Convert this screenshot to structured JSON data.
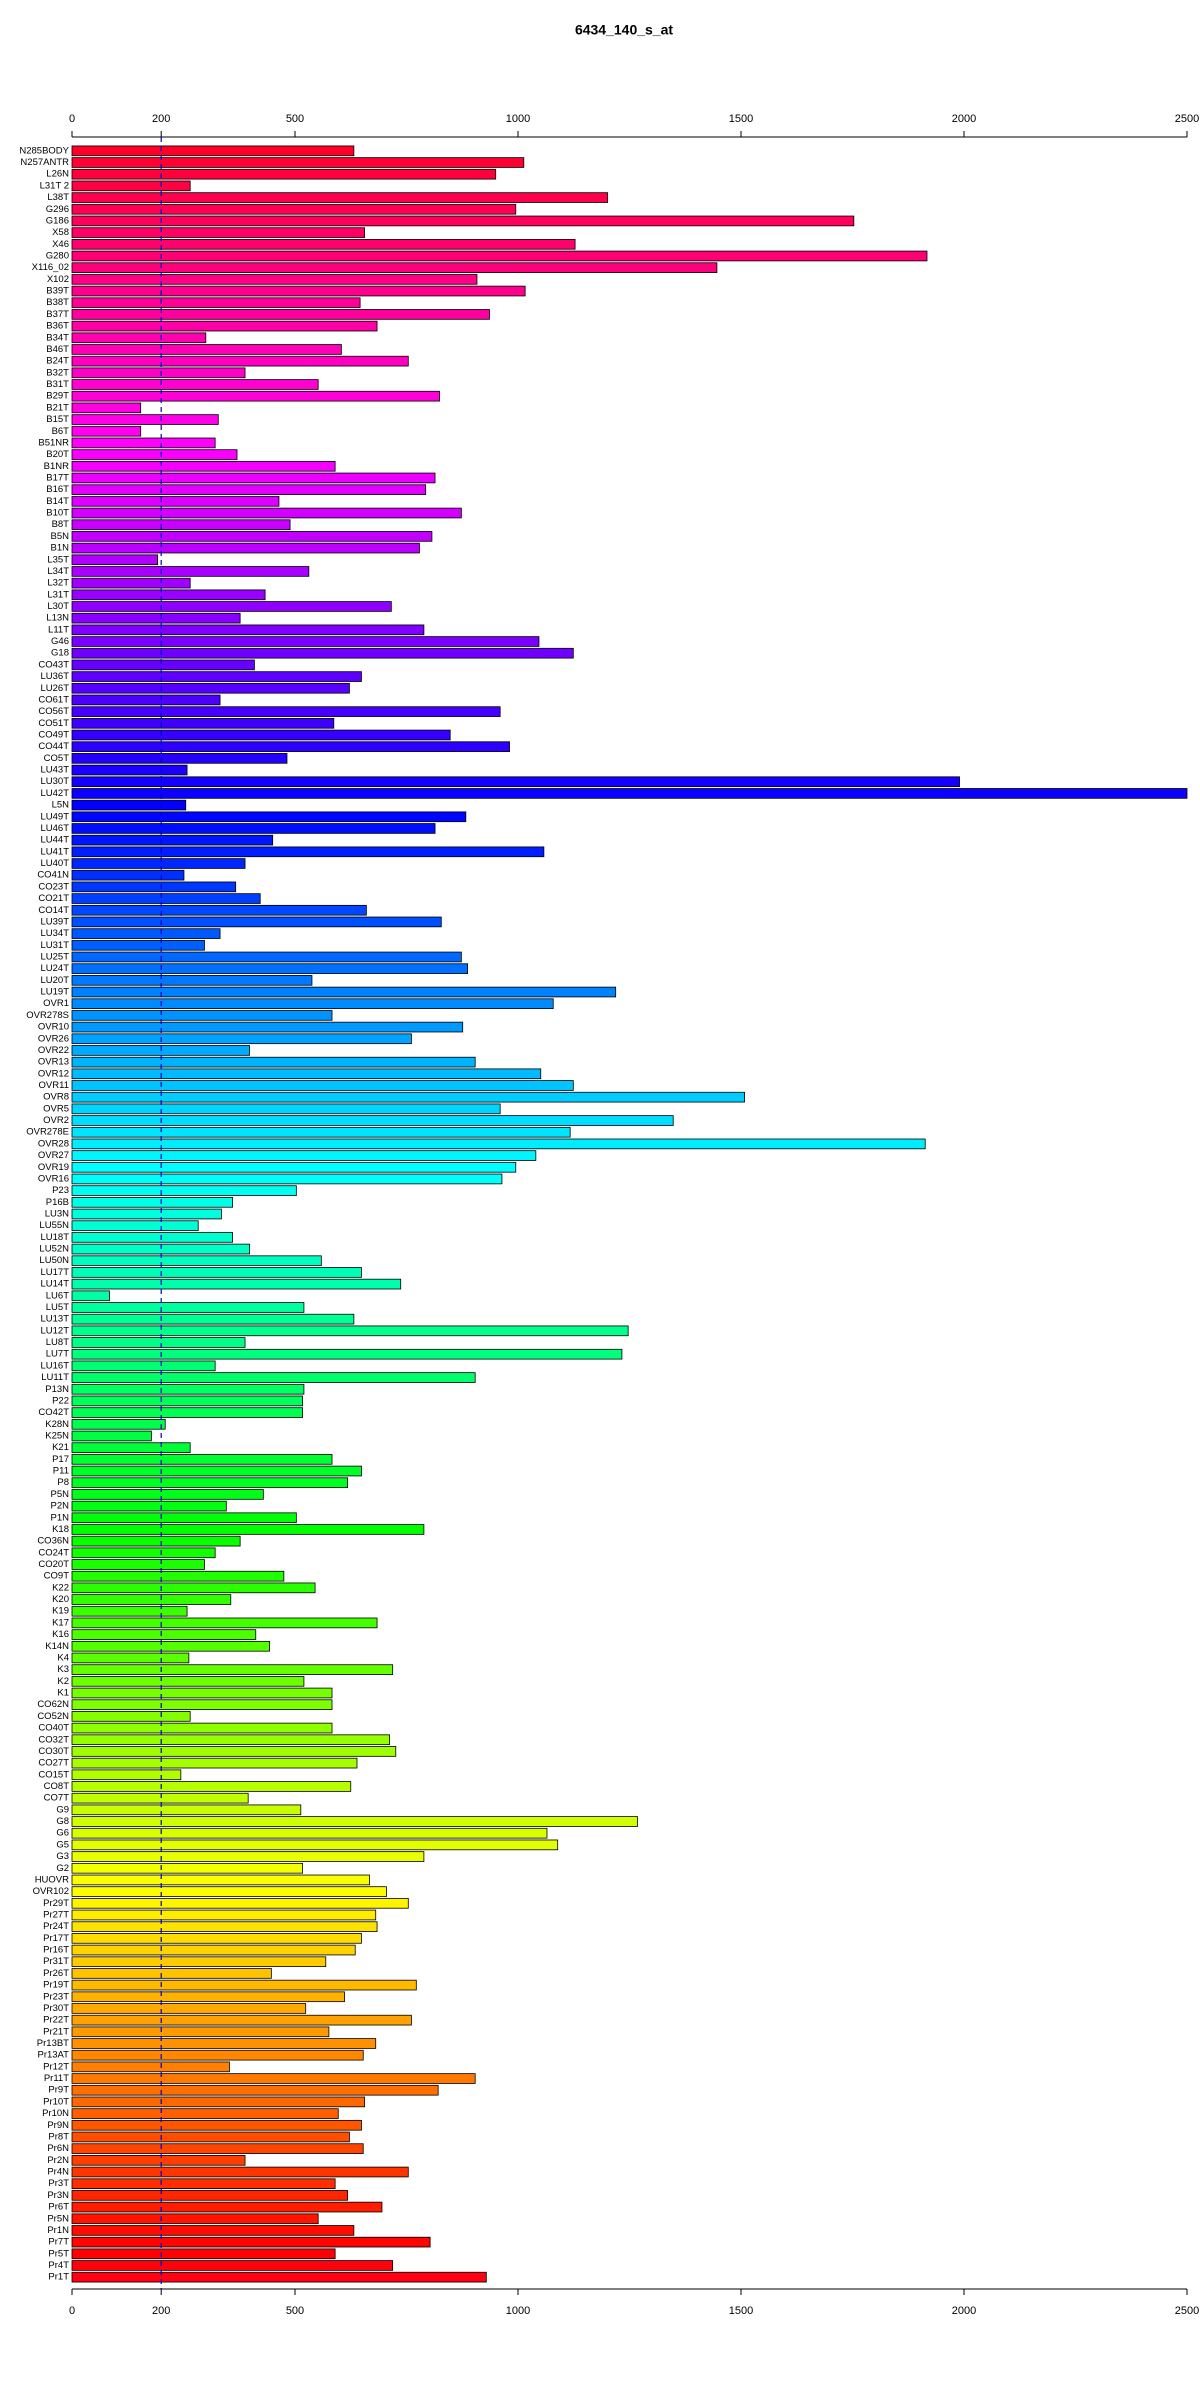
{
  "chart_data": {
    "type": "barh",
    "title": "6434_140_s_at",
    "categories": [
      "N285BODY",
      "N257ANTR",
      "L26N",
      "L31T 2",
      "L38T",
      "G296",
      "G186",
      "X58",
      "X46",
      "G280",
      "X116_02",
      "X102",
      "B39T",
      "B38T",
      "B37T",
      "B36T",
      "B34T",
      "B46T",
      "B24T",
      "B32T",
      "B31T",
      "B29T",
      "B21T",
      "B15T",
      "B6T",
      "B51NR",
      "B20T",
      "B1NR",
      "B17T",
      "B16T",
      "B14T",
      "B10T",
      "B8T",
      "B5N",
      "B1N",
      "L35T",
      "L34T",
      "L32T",
      "L31T",
      "L30T",
      "L13N",
      "L11T",
      "G46",
      "G18",
      "CO43T",
      "LU36T",
      "LU26T",
      "CO61T",
      "CO56T",
      "CO51T",
      "CO49T",
      "CO44T",
      "CO5T",
      "LU43T",
      "LU30T",
      "LU42T",
      "L5N",
      "LU49T",
      "LU46T",
      "LU44T",
      "LU41T",
      "LU40T",
      "CO41N",
      "CO23T",
      "CO21T",
      "CO14T",
      "LU39T",
      "LU34T",
      "LU31T",
      "LU25T",
      "LU24T",
      "LU20T",
      "LU19T",
      "OVR1",
      "OVR278S",
      "OVR10",
      "OVR26",
      "OVR22",
      "OVR13",
      "OVR12",
      "OVR11",
      "OVR8",
      "OVR5",
      "OVR2",
      "OVR278E",
      "OVR28",
      "OVR27",
      "OVR19",
      "OVR16",
      "P23",
      "P16B",
      "LU3N",
      "LU55N",
      "LU18T",
      "LU52N",
      "LU50N",
      "LU17T",
      "LU14T",
      "LU6T",
      "LU5T",
      "LU13T",
      "LU12T",
      "LU8T",
      "LU7T",
      "LU16T",
      "LU11T",
      "P13N",
      "P22",
      "CO42T",
      "K28N",
      "K25N",
      "K21",
      "P17",
      "P11",
      "P8",
      "P5N",
      "P2N",
      "P1N",
      "K18",
      "CO36N",
      "CO24T",
      "CO20T",
      "CO9T",
      "K22",
      "K20",
      "K19",
      "K17",
      "K16",
      "K14N",
      "K4",
      "K3",
      "K2",
      "K1",
      "CO62N",
      "CO52N",
      "CO40T",
      "CO32T",
      "CO30T",
      "CO27T",
      "CO15T",
      "CO8T",
      "CO7T",
      "G9",
      "G8",
      "G6",
      "G5",
      "G3",
      "G2",
      "HUOVR",
      "OVR102",
      "Pr29T",
      "Pr27T",
      "Pr24T",
      "Pr17T",
      "Pr16T",
      "Pr31T",
      "Pr26T",
      "Pr19T",
      "Pr23T",
      "Pr30T",
      "Pr22T",
      "Pr21T",
      "Pr13BT",
      "Pr13AT",
      "Pr12T",
      "Pr11T",
      "Pr9T",
      "Pr10T",
      "Pr10N",
      "Pr9N",
      "Pr8T",
      "Pr6N",
      "Pr2N",
      "Pr4N",
      "Pr3T",
      "Pr3N",
      "Pr6T",
      "Pr5N",
      "Pr1N",
      "Pr7T",
      "Pr5T",
      "Pr4T",
      "Pr1T"
    ],
    "values": [
      632,
      1013,
      950,
      265,
      1201,
      995,
      1753,
      656,
      1128,
      1917,
      1446,
      908,
      1016,
      646,
      936,
      684,
      300,
      604,
      754,
      388,
      552,
      824,
      154,
      328,
      154,
      321,
      370,
      590,
      814,
      793,
      464,
      873,
      489,
      807,
      779,
      192,
      531,
      265,
      433,
      716,
      377,
      789,
      1047,
      1124,
      409,
      649,
      622,
      332,
      960,
      587,
      848,
      981,
      482,
      258,
      1990,
      2500,
      255,
      883,
      814,
      450,
      1058,
      388,
      251,
      367,
      422,
      660,
      828,
      332,
      297,
      873,
      887,
      538,
      1219,
      1079,
      583,
      876,
      761,
      398,
      904,
      1051,
      1124,
      1508,
      960,
      1348,
      1117,
      1913,
      1040,
      995,
      964,
      503,
      360,
      335,
      283,
      360,
      398,
      559,
      649,
      737,
      84,
      520,
      632,
      1247,
      388,
      1233,
      321,
      904,
      520,
      517,
      517,
      209,
      178,
      265,
      583,
      649,
      618,
      429,
      346,
      503,
      789,
      377,
      321,
      297,
      475,
      545,
      356,
      258,
      684,
      412,
      443,
      262,
      719,
      520,
      583,
      583,
      265,
      583,
      712,
      726,
      639,
      244,
      625,
      395,
      513,
      1268,
      1065,
      1089,
      789,
      517,
      667,
      705,
      754,
      681,
      684,
      649,
      635,
      569,
      447,
      772,
      611,
      524,
      761,
      576,
      681,
      653,
      353,
      904,
      821,
      656,
      597,
      649,
      622,
      653,
      388,
      754,
      590,
      618,
      695,
      552,
      632,
      803,
      590,
      719,
      929
    ],
    "xlim": [
      0,
      2500
    ],
    "xticks": [
      0,
      200,
      500,
      1000,
      1500,
      2000,
      2500
    ],
    "reference_line": 200,
    "reference_line_color": "#0000cc",
    "bar_hue_range": [
      350,
      -5
    ],
    "bar_border_color": "#000000"
  }
}
